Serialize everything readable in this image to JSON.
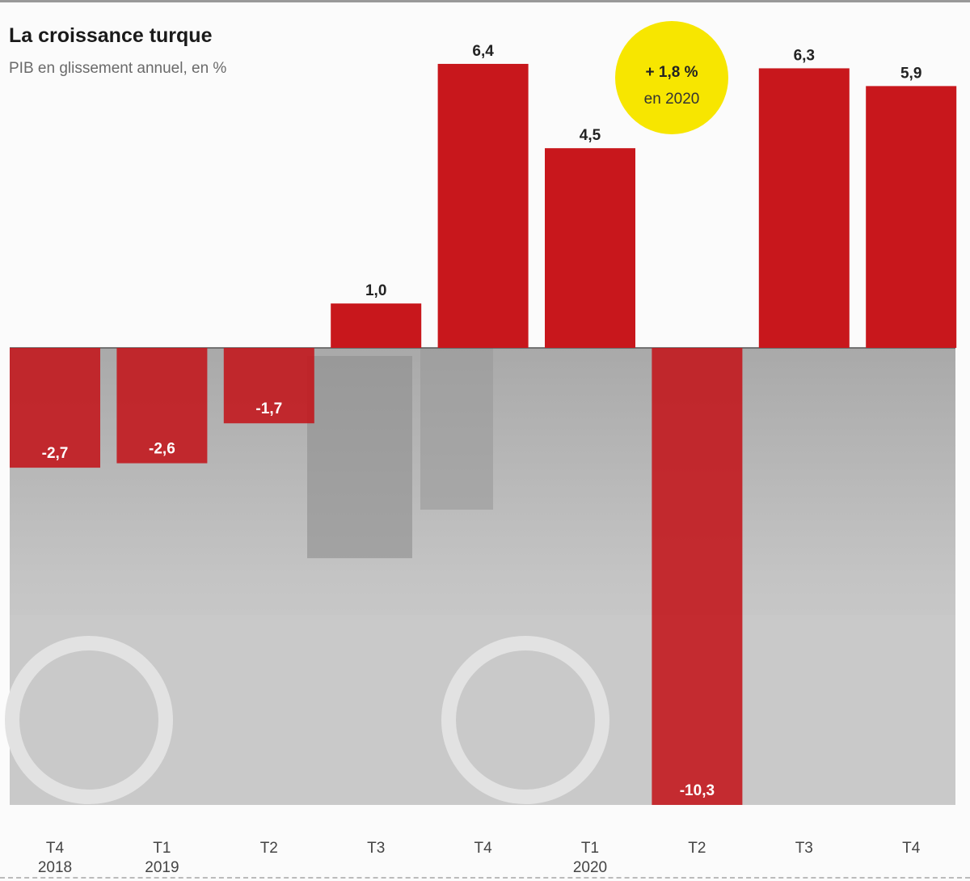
{
  "chart_data": {
    "type": "bar",
    "title": "La croissance turque",
    "subtitle": "PIB en glissement annuel, en %",
    "categories": [
      {
        "quarter": "T4",
        "year": "2018"
      },
      {
        "quarter": "T1",
        "year": "2019"
      },
      {
        "quarter": "T2",
        "year": ""
      },
      {
        "quarter": "T3",
        "year": ""
      },
      {
        "quarter": "T4",
        "year": ""
      },
      {
        "quarter": "T1",
        "year": "2020"
      },
      {
        "quarter": "T2",
        "year": ""
      },
      {
        "quarter": "T3",
        "year": ""
      },
      {
        "quarter": "T4",
        "year": ""
      }
    ],
    "values": [
      -2.7,
      -2.6,
      -1.7,
      1.0,
      6.4,
      4.5,
      -10.3,
      6.3,
      5.9
    ],
    "data_labels": [
      "-2,7",
      "-2,6",
      "-1,7",
      "1,0",
      "6,4",
      "4,5",
      "-10,3",
      "6,3",
      "5,9"
    ],
    "ylim": [
      -10.3,
      7.8
    ],
    "grid": false,
    "annotation": {
      "line1": "+ 1,8 %",
      "line2": "en 2020"
    },
    "colors": {
      "bar": "#c8171c",
      "annotation_bg": "#f7e600",
      "photo_bg": "#b9b9b9"
    }
  }
}
